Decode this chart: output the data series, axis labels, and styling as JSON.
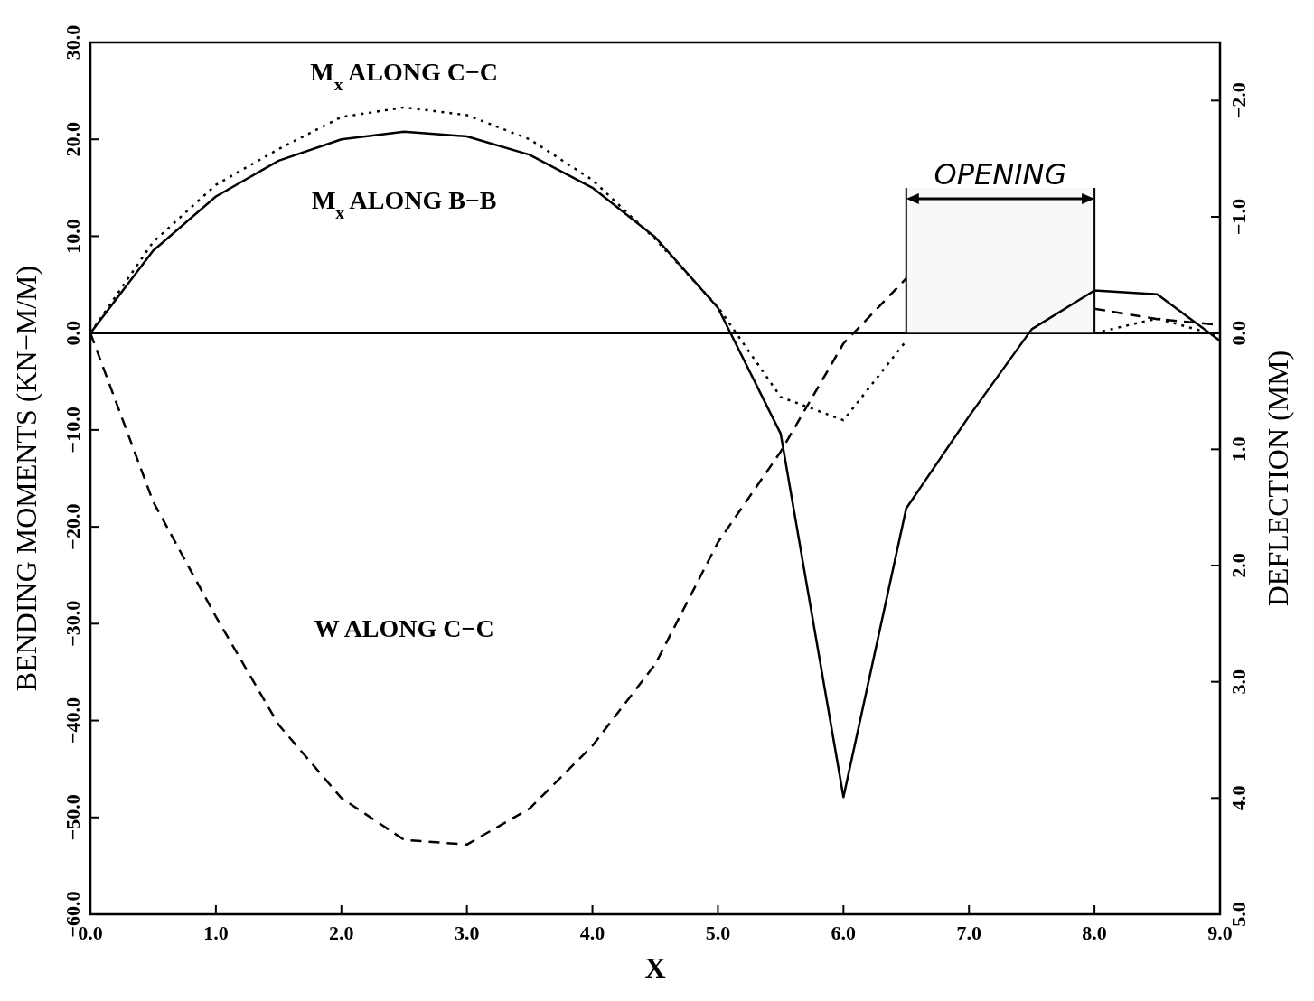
{
  "chart_data": {
    "type": "line",
    "xlabel": "X",
    "ylabel": "BENDING MOMENTS (KN−M/M)",
    "y2label": "DEFLECTION (MM)",
    "x": [
      0,
      0.5,
      1,
      1.5,
      2,
      2.5,
      3,
      3.5,
      4,
      4.5,
      5,
      5.5,
      6,
      6.5,
      7,
      7.5,
      8,
      8.5,
      9
    ],
    "series": [
      {
        "name": "M$_{x}$ ALONG B−B",
        "color": "#000000",
        "line_style": "solid",
        "values": [
          0,
          8.5,
          14.1,
          17.8,
          20.0,
          20.8,
          20.3,
          18.4,
          15.0,
          9.9,
          2.6,
          -10.4,
          -47.9,
          -18.1,
          -8.6,
          0.4,
          4.4,
          4.0,
          -0.8
        ]
      },
      {
        "name": "M$_{x}$ ALONG C−C",
        "color": "#000000",
        "line_style": "dotted",
        "values": [
          0,
          9.4,
          15.3,
          19.0,
          22.3,
          23.3,
          22.5,
          20.0,
          15.8,
          9.7,
          2.7,
          -6.6,
          -9.0,
          -0.8,
          null,
          null,
          0,
          1.5,
          -0.3
        ]
      },
      {
        "name": "W ALONG C−C",
        "color": "#000000",
        "line_style": "dashed",
        "axis": "y2",
        "x": [
          0,
          0.5,
          1,
          1.5,
          2,
          2.5,
          3,
          3.5,
          4,
          4.5,
          5,
          5.5,
          6,
          6.25,
          6.5,
          7,
          8,
          8.5,
          9
        ],
        "values": [
          0,
          1.45,
          2.44,
          3.37,
          4.0,
          4.36,
          4.4,
          4.09,
          3.55,
          2.85,
          1.8,
          1.02,
          0.09,
          -0.19,
          -0.47,
          null,
          -0.21,
          -0.12,
          -0.07
        ]
      }
    ],
    "xlim": [
      0,
      9
    ],
    "xticks": [
      {
        "value": 0,
        "label": "0.0"
      },
      {
        "value": 1,
        "label": "1.0"
      },
      {
        "value": 2,
        "label": "2.0"
      },
      {
        "value": 3,
        "label": "3.0"
      },
      {
        "value": 4,
        "label": "4.0"
      },
      {
        "value": 5,
        "label": "5.0"
      },
      {
        "value": 6,
        "label": "6.0"
      },
      {
        "value": 7,
        "label": "7.0"
      },
      {
        "value": 8,
        "label": "8.0"
      },
      {
        "value": 9,
        "label": "9.0"
      }
    ],
    "ylim": [
      -60,
      30
    ],
    "yticks": [
      {
        "value": -60,
        "label": "−60.0"
      },
      {
        "value": -50,
        "label": "−50.0"
      },
      {
        "value": -40,
        "label": "−40.0"
      },
      {
        "value": -30,
        "label": "−30.0"
      },
      {
        "value": -20,
        "label": "−20.0"
      },
      {
        "value": -10,
        "label": "−10.0"
      },
      {
        "value": 0,
        "label": "0.0"
      },
      {
        "value": 10,
        "label": "10.0"
      },
      {
        "value": 20,
        "label": "20.0"
      },
      {
        "value": 30,
        "label": "30.0"
      }
    ],
    "y2lim": [
      5,
      -2.5
    ],
    "y2ticks": [
      {
        "value": 5,
        "label": "5.0"
      },
      {
        "value": 4,
        "label": "4.0"
      },
      {
        "value": 3,
        "label": "3.0"
      },
      {
        "value": 2,
        "label": "2.0"
      },
      {
        "value": 1,
        "label": "1.0"
      },
      {
        "value": 0,
        "label": "0.0"
      },
      {
        "value": -1,
        "label": "−1.0"
      },
      {
        "value": -2,
        "label": "−2.0"
      }
    ],
    "ref_lines": [
      {
        "axis": "y",
        "value": 0,
        "color": "#000000"
      }
    ],
    "bands": [
      {
        "axis": "x",
        "from": 6.5,
        "to": 8,
        "label": "OPENING"
      }
    ],
    "grid": false,
    "legend": false,
    "marker": "none"
  }
}
